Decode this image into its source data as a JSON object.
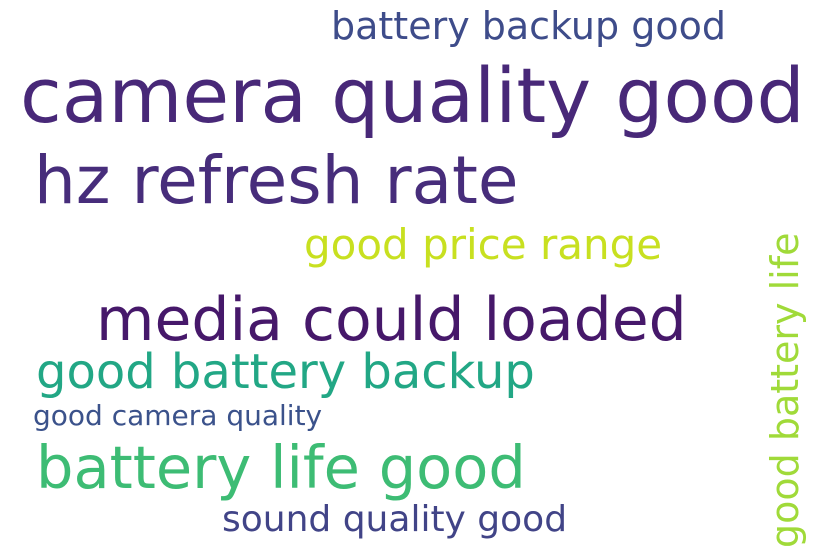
{
  "wordcloud": {
    "words": [
      {
        "id": "camera-quality-good",
        "text": "camera quality good",
        "color": "#482878"
      },
      {
        "id": "hz-refresh-rate",
        "text": "hz refresh rate",
        "color": "#472d7b"
      },
      {
        "id": "media-could-loaded",
        "text": "media could loaded",
        "color": "#46186a"
      },
      {
        "id": "battery-life-good",
        "text": "battery life good",
        "color": "#3dbc74"
      },
      {
        "id": "good-battery-backup",
        "text": "good battery backup",
        "color": "#22a785"
      },
      {
        "id": "good-price-range",
        "text": "good price range",
        "color": "#c8e020"
      },
      {
        "id": "battery-backup-good",
        "text": "battery backup good",
        "color": "#3e4c8a"
      },
      {
        "id": "sound-quality-good",
        "text": "sound quality good",
        "color": "#414487"
      },
      {
        "id": "good-camera-quality",
        "text": "good camera quality",
        "color": "#3b528b"
      },
      {
        "id": "good-battery-life",
        "text": "good battery life",
        "color": "#a0da39"
      }
    ]
  }
}
